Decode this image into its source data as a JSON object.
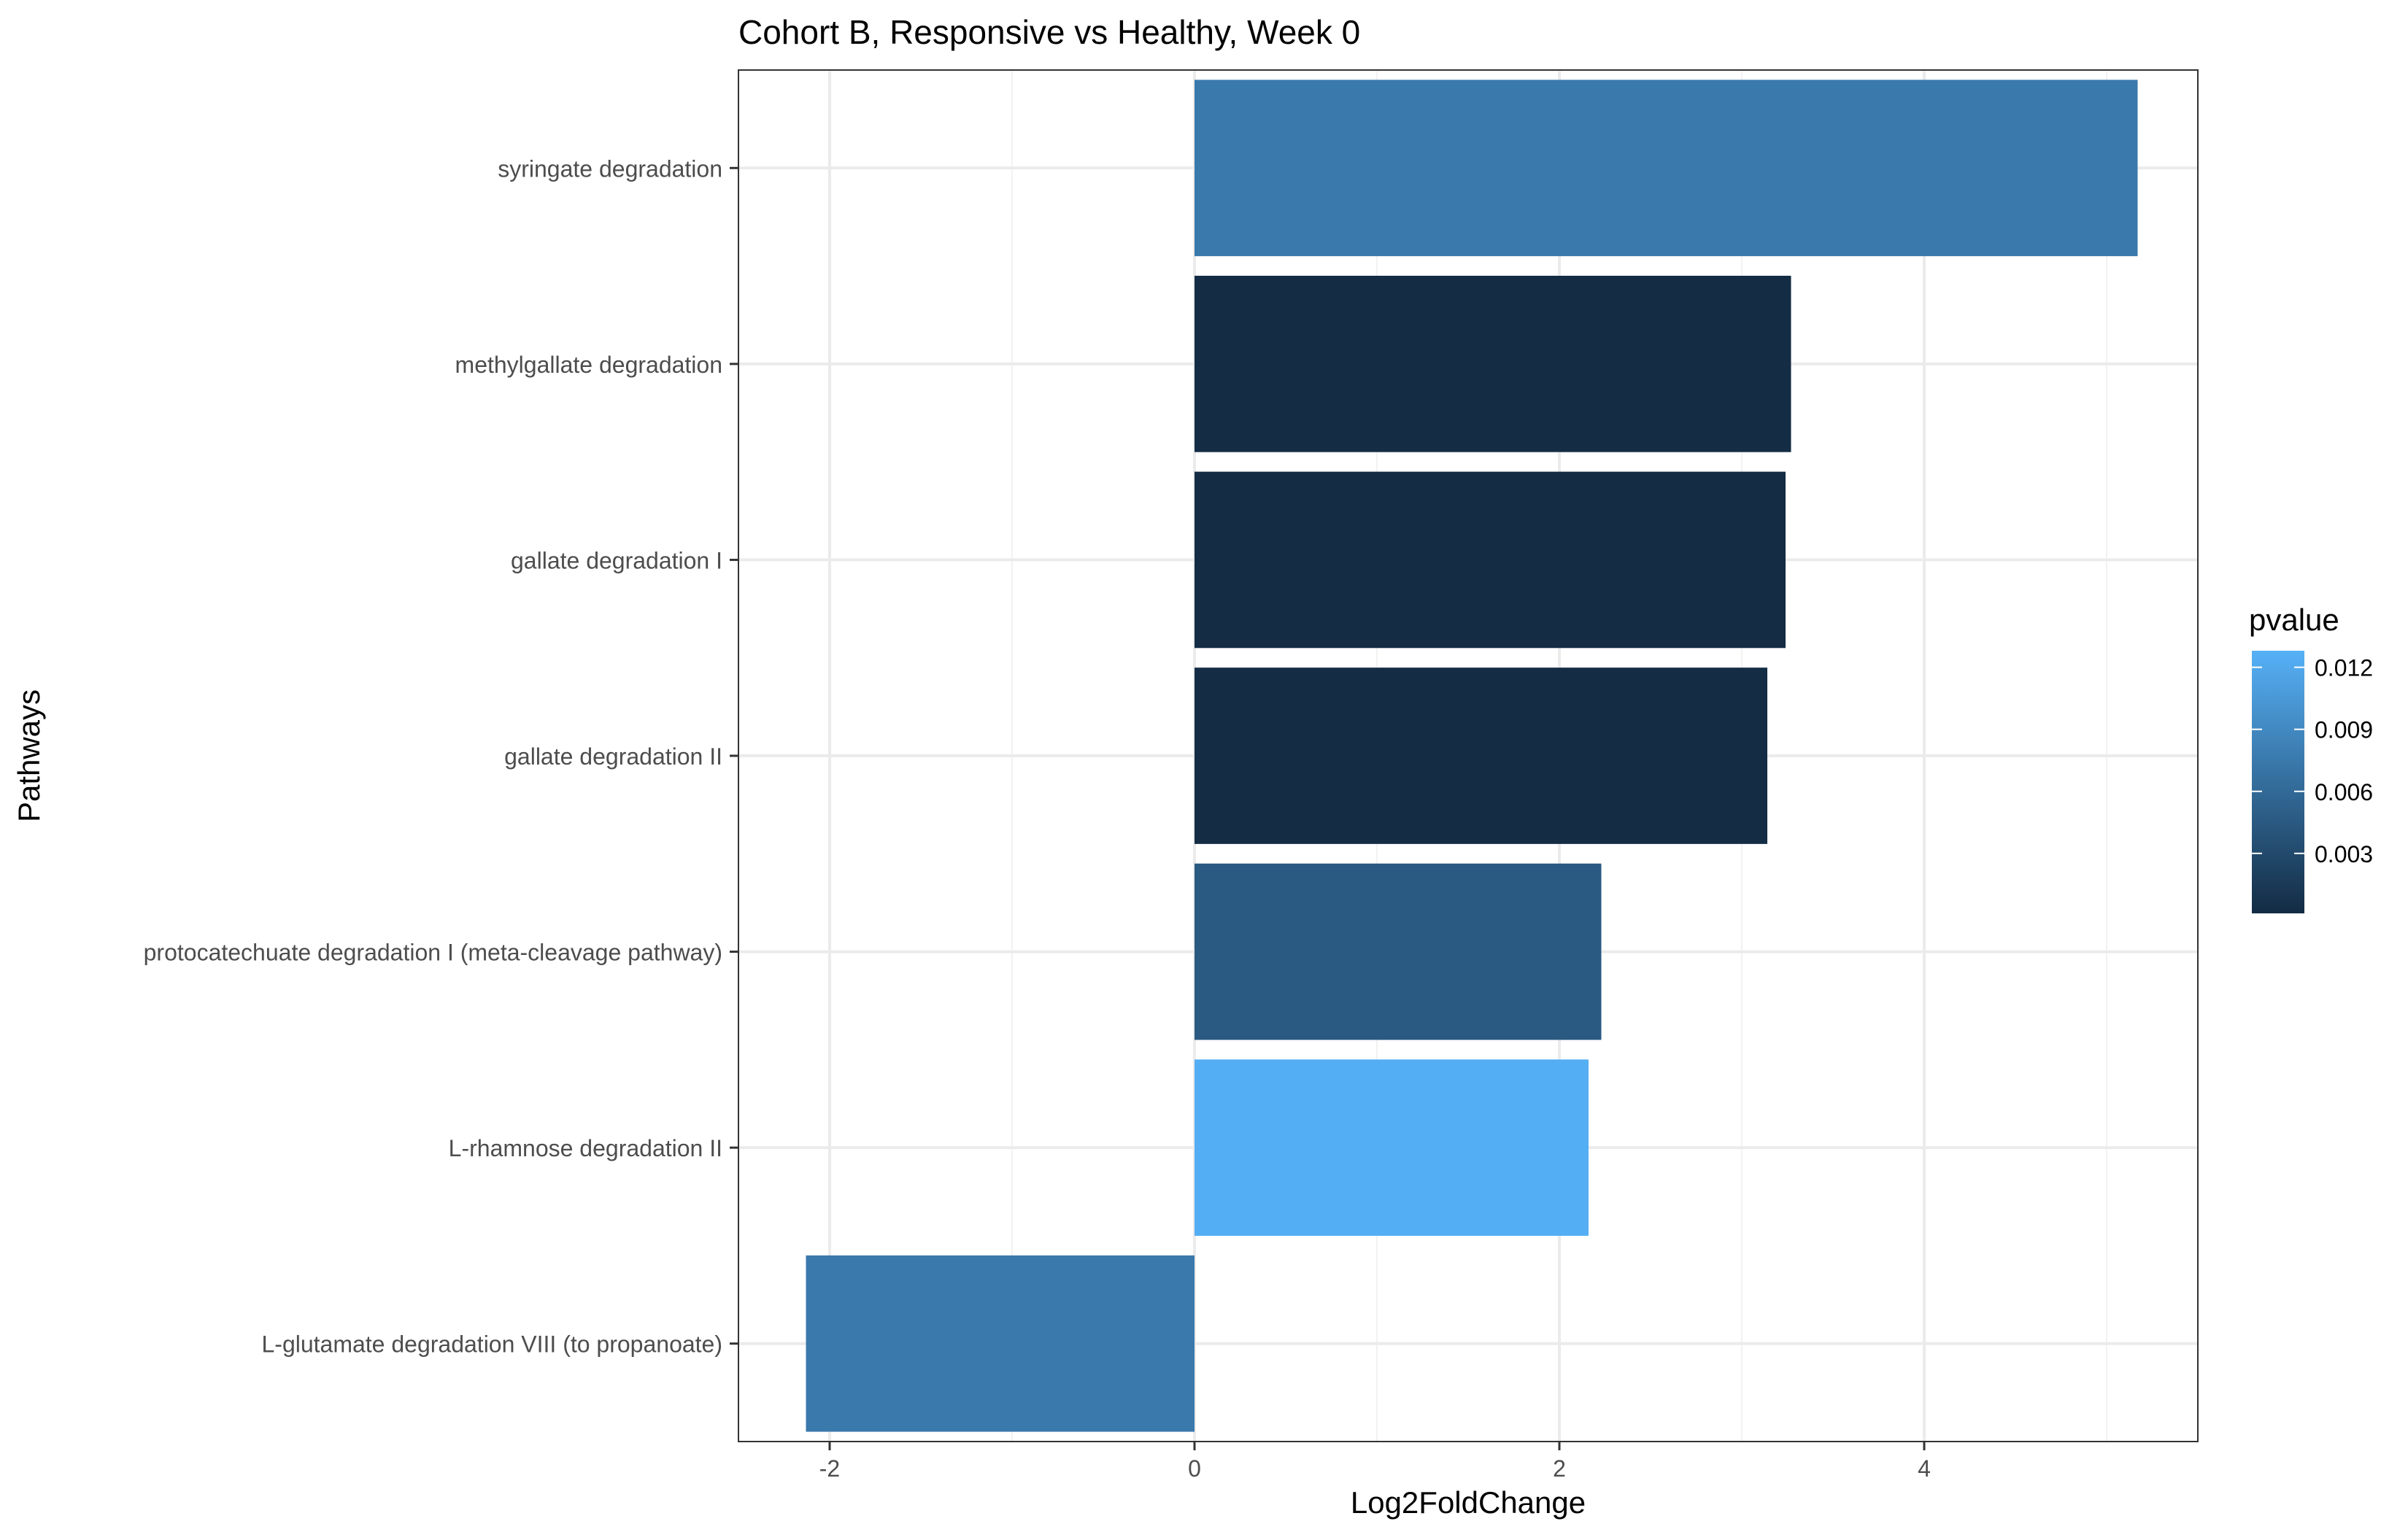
{
  "chart_data": {
    "type": "bar",
    "orientation": "horizontal",
    "title": "Cohort B, Responsive vs Healthy, Week 0",
    "xlabel": "Log2FoldChange",
    "ylabel": "Pathways",
    "xlim": [
      -2.5,
      5.5
    ],
    "x_ticks": [
      -2,
      0,
      2,
      4
    ],
    "x_tick_labels": [
      "-2",
      "0",
      "2",
      "4"
    ],
    "grid": true,
    "categories": [
      "syringate degradation",
      "methylgallate degradation",
      "gallate degradation I",
      "gallate degradation II",
      "protocatechuate degradation I (meta-cleavage pathway)",
      "L-rhamnose degradation II",
      "L-glutamate degradation VIII (to propanoate)"
    ],
    "values": [
      5.17,
      3.27,
      3.24,
      3.14,
      2.23,
      2.16,
      -2.13
    ],
    "pvalues": [
      0.0075,
      0.0002,
      0.0002,
      0.0002,
      0.0045,
      0.0125,
      0.0075
    ],
    "legend": {
      "title": "pvalue",
      "placement": "right",
      "ticks": [
        0.003,
        0.006,
        0.009,
        0.012
      ],
      "tick_labels": [
        "0.003",
        "0.006",
        "0.009",
        "0.012"
      ],
      "range": [
        0.0001,
        0.0128
      ],
      "low_color": "#132B43",
      "high_color": "#56B1F7"
    }
  }
}
